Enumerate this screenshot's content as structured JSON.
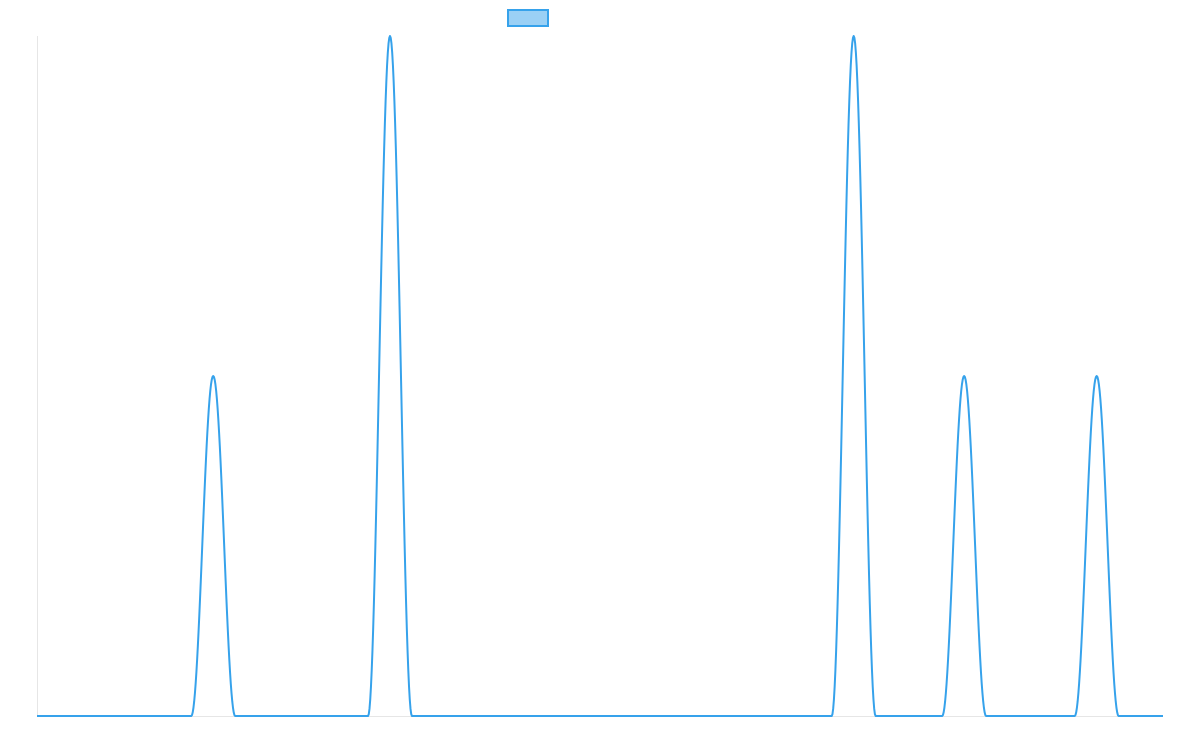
{
  "chart_data": {
    "type": "line",
    "title": "",
    "xlabel": "",
    "ylabel": "",
    "xlim": [
      0,
      1000
    ],
    "ylim": [
      0,
      2
    ],
    "grid": false,
    "legend": {
      "placement": "top-center"
    },
    "series": [
      {
        "color": "#36a2eb",
        "fill_color": "#9ad0f5",
        "peaks": [
          {
            "center": 156.5,
            "half_width": 19.5,
            "height": 1
          },
          {
            "center": 313.5,
            "half_width": 19.5,
            "height": 2
          },
          {
            "center": 725.3,
            "half_width": 19.5,
            "height": 2
          },
          {
            "center": 823.4,
            "half_width": 19.5,
            "height": 1
          },
          {
            "center": 941.1,
            "half_width": 19.5,
            "height": 1
          }
        ]
      }
    ]
  }
}
